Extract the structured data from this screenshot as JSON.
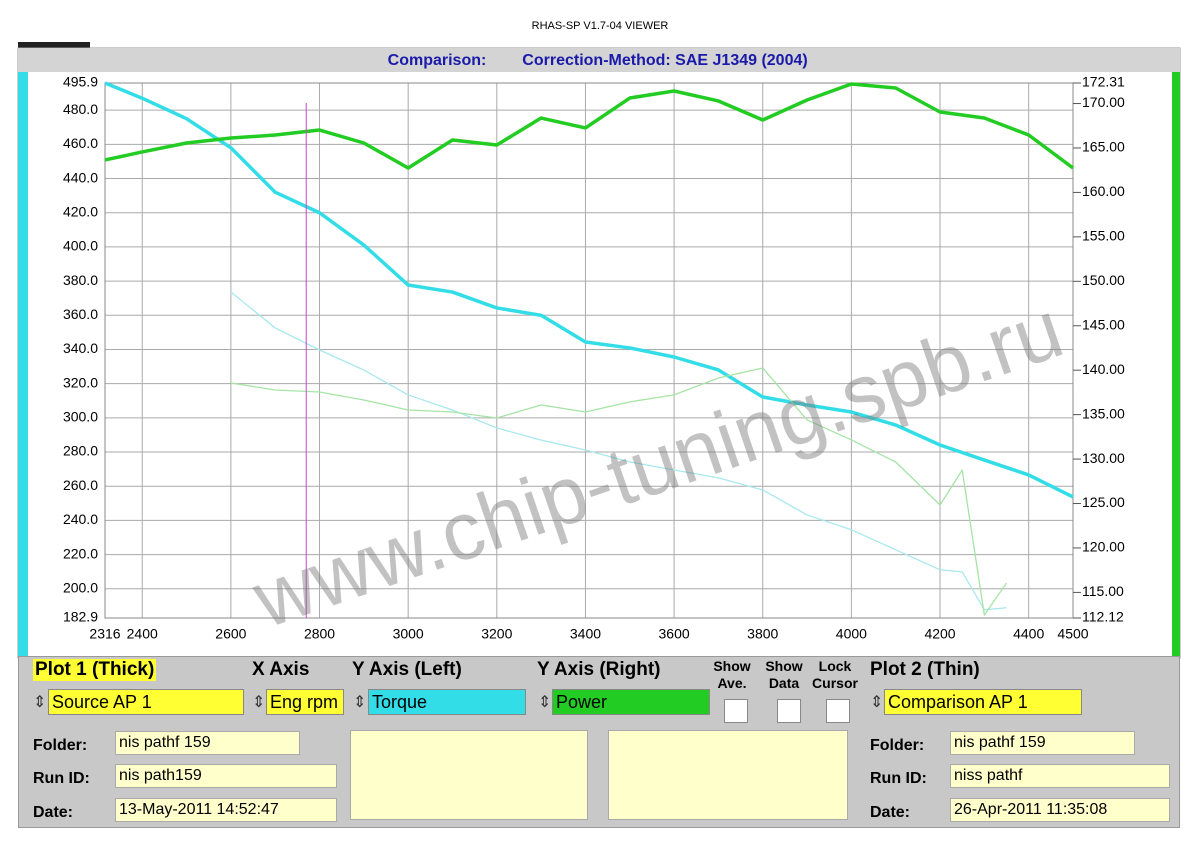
{
  "window_title": "RHAS-SP V1.7-04  VIEWER",
  "watermark": "www.chip-tuning.spb.ru",
  "chart_data": {
    "type": "line",
    "title": "Comparison:",
    "subtitle": "Correction-Method: SAE J1349 (2004)",
    "xlim": [
      2316,
      4500
    ],
    "xticks": [
      2316,
      2400,
      2600,
      2800,
      3000,
      3200,
      3400,
      3600,
      3800,
      4000,
      4200,
      4400,
      4500
    ],
    "ylim": [
      182.9,
      495.9
    ],
    "yticks": [
      495.9,
      {
        "value": 480,
        "label": "480.0"
      },
      {
        "value": 460,
        "label": "460.0"
      },
      {
        "value": 440,
        "label": "440.0"
      },
      {
        "value": 420,
        "label": "420.0"
      },
      {
        "value": 400,
        "label": "400.0"
      },
      {
        "value": 380,
        "label": "380.0"
      },
      {
        "value": 360,
        "label": "360.0"
      },
      {
        "value": 340,
        "label": "340.0"
      },
      {
        "value": 320,
        "label": "320.0"
      },
      {
        "value": 300,
        "label": "300.0"
      },
      {
        "value": 280,
        "label": "280.0"
      },
      {
        "value": 260,
        "label": "260.0"
      },
      {
        "value": 240,
        "label": "240.0"
      },
      {
        "value": 220,
        "label": "220.0"
      },
      {
        "value": 200,
        "label": "200.0"
      },
      182.9
    ],
    "y2lim": [
      112.12,
      172.31
    ],
    "y2ticks": [
      172.31,
      {
        "value": 170,
        "label": "170.00"
      },
      {
        "value": 165,
        "label": "165.00"
      },
      {
        "value": 160,
        "label": "160.00"
      },
      {
        "value": 155,
        "label": "155.00"
      },
      {
        "value": 150,
        "label": "150.00"
      },
      {
        "value": 145,
        "label": "145.00"
      },
      {
        "value": 140,
        "label": "140.00"
      },
      {
        "value": 135,
        "label": "135.00"
      },
      {
        "value": 130,
        "label": "130.00"
      },
      {
        "value": 125,
        "label": "125.00"
      },
      {
        "value": 120,
        "label": "120.00"
      },
      {
        "value": 115,
        "label": "115.00"
      },
      112.12
    ],
    "grid": true,
    "cursor": 2770,
    "series": [
      {
        "color": "#33dde8",
        "line_width": 3.5,
        "x": [
          2316,
          2400,
          2500,
          2600,
          2700,
          2800,
          2900,
          3000,
          3100,
          3200,
          3300,
          3400,
          3500,
          3600,
          3700,
          3800,
          3900,
          4000,
          4100,
          4200,
          4300,
          4400,
          4500
        ],
        "values": [
          495.9,
          487,
          475,
          458,
          432,
          420,
          401.1,
          377.7,
          373.6,
          364.3,
          360,
          344.4,
          340.9,
          335.6,
          328,
          312.2,
          307.5,
          303.4,
          295.8,
          284.1,
          275.3,
          266.6,
          253.7
        ]
      },
      {
        "color": "#22cc22",
        "line_width": 3.5,
        "axis": "y2",
        "x": [
          2316,
          2400,
          2500,
          2600,
          2700,
          2800,
          2900,
          3000,
          3100,
          3200,
          3300,
          3400,
          3500,
          3600,
          3700,
          3800,
          3900,
          4000,
          4100,
          4200,
          4300,
          4400,
          4500
        ],
        "values": [
          163.65,
          164.55,
          165.56,
          166.12,
          166.46,
          167.02,
          165.56,
          162.75,
          165.9,
          165.33,
          168.37,
          167.25,
          170.62,
          171.41,
          170.29,
          168.15,
          170.4,
          172.2,
          171.75,
          169.05,
          168.37,
          166.46,
          162.75
        ]
      },
      {
        "color": "#a8e8ee",
        "line_width": 1.3,
        "x": [
          2600,
          2700,
          2800,
          2900,
          3000,
          3100,
          3200,
          3300,
          3400,
          3500,
          3600,
          3700,
          3800,
          3900,
          4000,
          4100,
          4200,
          4250,
          4300,
          4350
        ],
        "values": [
          373.6,
          352.6,
          339.7,
          328,
          313.4,
          304.6,
          294.1,
          287,
          281.2,
          274.2,
          269.5,
          264.9,
          257.8,
          243.2,
          234.5,
          222.8,
          211.1,
          209.9,
          187.7,
          188.9
        ]
      },
      {
        "color": "#a6e4a6",
        "line_width": 1.3,
        "axis": "y2",
        "x": [
          2600,
          2700,
          2800,
          2900,
          3000,
          3100,
          3200,
          3300,
          3400,
          3500,
          3600,
          3700,
          3800,
          3900,
          4000,
          4100,
          4200,
          4250,
          4300,
          4350
        ],
        "values": [
          138.56,
          137.77,
          137.55,
          136.65,
          135.52,
          135.3,
          134.62,
          136.09,
          135.3,
          136.43,
          137.22,
          139.12,
          140.25,
          134.4,
          132.15,
          129.67,
          124.83,
          128.77,
          112.46,
          116.06
        ]
      }
    ]
  },
  "panel": {
    "plot1_title": "Plot 1 (Thick)",
    "x_axis_title": "X Axis",
    "y_left_title": "Y Axis (Left)",
    "y_right_title": "Y Axis (Right)",
    "show_ave": "Show Ave.",
    "show_data": "Show Data",
    "lock_cursor": "Lock Cursor",
    "plot2_title": "Plot 2 (Thin)",
    "plot1_source": "Source AP 1",
    "x_axis": "Eng rpm",
    "y_left": "Torque",
    "y_right": "Power",
    "plot2_source": "Comparison AP 1",
    "plot1": {
      "folder_label": "Folder:",
      "folder": "nis pathf 159",
      "run_label": "Run ID:",
      "run": "nis path159",
      "date_label": "Date:",
      "date": "13-May-2011  14:52:47"
    },
    "plot2": {
      "folder_label": "Folder:",
      "folder": "nis pathf 159",
      "run_label": "Run ID:",
      "run": "niss pathf",
      "date_label": "Date:",
      "date": "26-Apr-2011  11:35:08"
    }
  }
}
